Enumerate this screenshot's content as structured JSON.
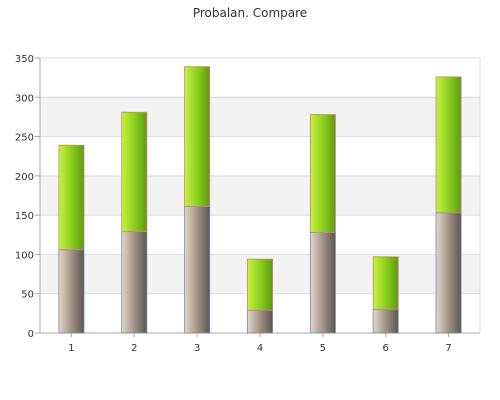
{
  "chart_data": {
    "type": "bar",
    "stacked": true,
    "title": "Probalan. Compare",
    "xlabel": "",
    "ylabel": "",
    "categories": [
      "1",
      "2",
      "3",
      "4",
      "5",
      "6",
      "7"
    ],
    "series": [
      {
        "values": [
          106,
          129,
          161,
          29,
          128,
          30,
          153
        ],
        "color": "#8a7d70"
      },
      {
        "values": [
          133,
          152,
          178,
          65,
          150,
          67,
          173
        ],
        "color": "#8ed11f"
      }
    ],
    "ylim": [
      0,
      350
    ],
    "yticks": [
      0,
      50,
      100,
      150,
      200,
      250,
      300,
      350
    ],
    "grid": true,
    "legend": "none"
  }
}
